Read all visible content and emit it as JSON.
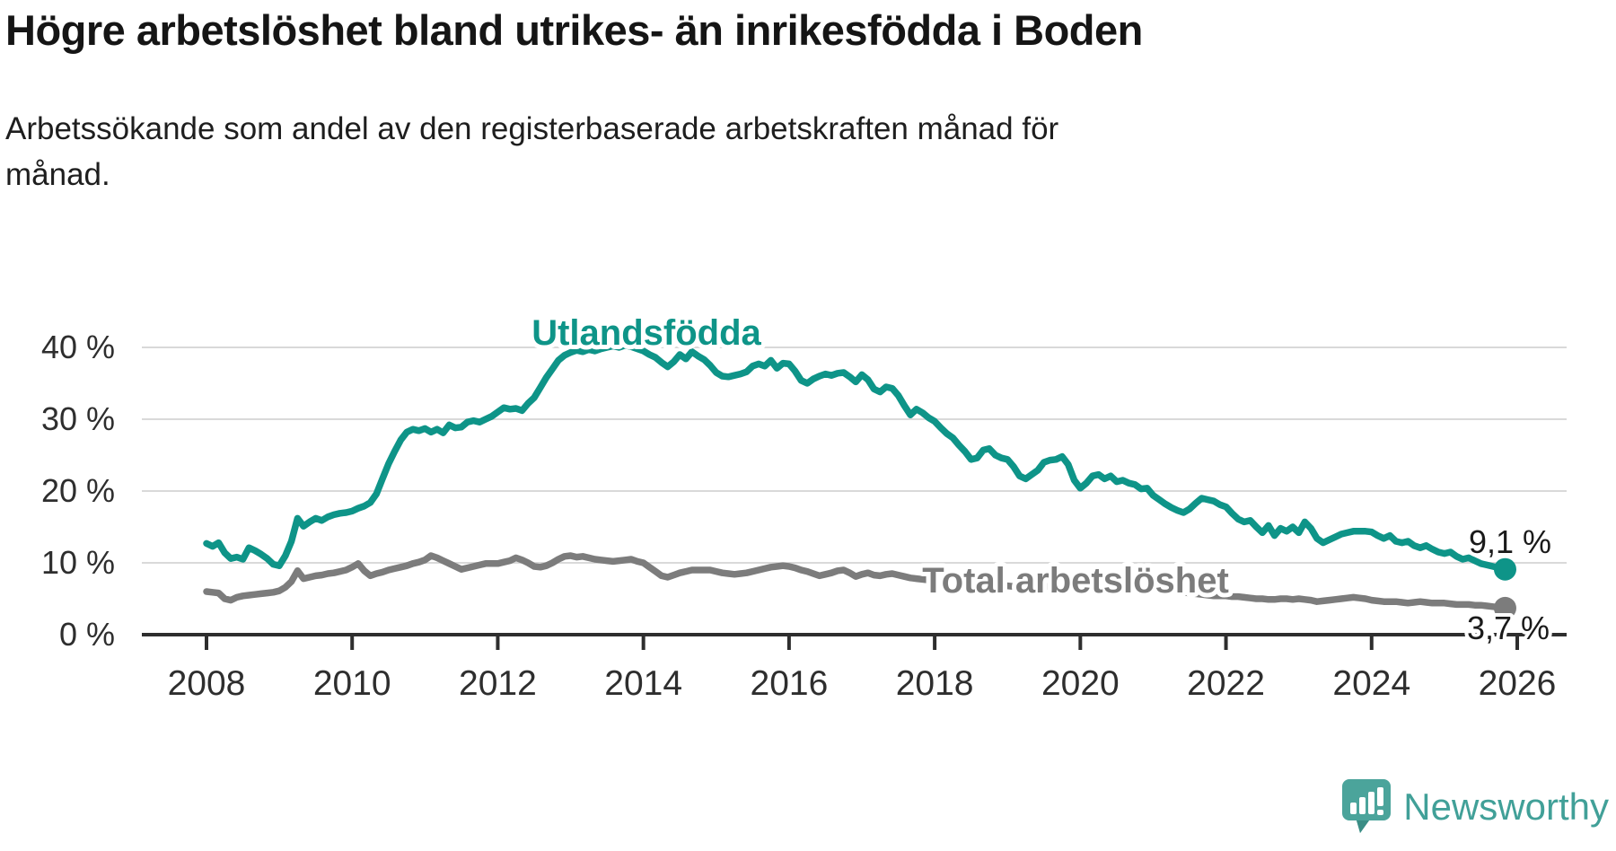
{
  "header": {
    "title": "Högre arbetslöshet bland utrikes- än inrikesfödda i Boden",
    "subtitle": "Arbetssökande som andel av den registerbaserade arbetskraften månad för\nmånad."
  },
  "footer": {
    "brand": "Newsworthy"
  },
  "colors": {
    "accent_teal": "#0e9488",
    "series_gray": "#7c7c7c",
    "logo_teal": "#4ba49b",
    "logo_fold_teal": "#3a8d85",
    "text_dark": "#1a1a1a",
    "grid": "#d9d9d9",
    "axis": "#2e2e2e"
  },
  "chart_data": {
    "type": "line",
    "title": "Högre arbetslöshet bland utrikes- än inrikesfödda i Boden",
    "subtitle": "Arbetssökande som andel av den registerbaserade arbetskraften månad för månad.",
    "x_interval": "monthly",
    "x_start_year": 2008,
    "xlim": [
      2007.1,
      2026.7
    ],
    "ylim": [
      0,
      44
    ],
    "grid": "horizontal",
    "legend_position": "inline-labels",
    "x_tick_labels": [
      "2008",
      "2010",
      "2012",
      "2014",
      "2016",
      "2018",
      "2020",
      "2022",
      "2024",
      "2026"
    ],
    "y_tick_values": [
      0,
      10,
      20,
      30,
      40
    ],
    "y_tick_labels": [
      "0 %",
      "10 %",
      "20 %",
      "30 %",
      "40 %"
    ],
    "series": [
      {
        "name": "Utlandsfödda",
        "color": "#0e9488",
        "end_label": "9,1 %",
        "last_value": 9.1,
        "last_point": "2025-11",
        "values": [
          12.7,
          12.3,
          12.8,
          11.4,
          10.6,
          10.8,
          10.5,
          12.1,
          11.7,
          11.2,
          10.6,
          9.8,
          9.6,
          11.0,
          13.0,
          16.2,
          15.1,
          15.7,
          16.2,
          15.9,
          16.4,
          16.7,
          16.9,
          17.0,
          17.2,
          17.6,
          17.9,
          18.4,
          19.6,
          21.7,
          23.8,
          25.5,
          27.1,
          28.2,
          28.6,
          28.4,
          28.7,
          28.2,
          28.6,
          28.1,
          29.2,
          28.8,
          28.9,
          29.6,
          29.8,
          29.6,
          30.0,
          30.4,
          31.0,
          31.6,
          31.4,
          31.5,
          31.2,
          32.2,
          33.0,
          34.4,
          35.8,
          37.0,
          38.2,
          38.9,
          39.3,
          39.6,
          39.4,
          39.7,
          39.5,
          39.8,
          40.0,
          40.2,
          40.0,
          40.3,
          40.1,
          39.8,
          39.5,
          39.0,
          38.6,
          37.9,
          37.3,
          38.0,
          39.0,
          38.4,
          39.4,
          38.8,
          38.3,
          37.5,
          36.5,
          36.0,
          35.9,
          36.1,
          36.3,
          36.6,
          37.4,
          37.7,
          37.4,
          38.2,
          37.1,
          37.8,
          37.7,
          36.7,
          35.4,
          35.0,
          35.6,
          36.0,
          36.3,
          36.1,
          36.4,
          36.5,
          35.9,
          35.2,
          36.2,
          35.5,
          34.2,
          33.8,
          34.5,
          34.3,
          33.3,
          31.9,
          30.6,
          31.4,
          30.9,
          30.2,
          29.7,
          28.8,
          28.0,
          27.4,
          26.4,
          25.5,
          24.4,
          24.6,
          25.7,
          25.9,
          25.0,
          24.6,
          24.4,
          23.4,
          22.1,
          21.7,
          22.3,
          22.9,
          24.0,
          24.3,
          24.4,
          24.8,
          23.7,
          21.5,
          20.4,
          21.1,
          22.1,
          22.3,
          21.7,
          22.1,
          21.3,
          21.5,
          21.1,
          20.9,
          20.3,
          20.4,
          19.4,
          18.8,
          18.2,
          17.7,
          17.3,
          17.0,
          17.5,
          18.3,
          19.0,
          18.8,
          18.6,
          18.1,
          17.8,
          16.9,
          16.1,
          15.7,
          15.9,
          15.0,
          14.2,
          15.2,
          13.8,
          14.8,
          14.4,
          15.0,
          14.2,
          15.7,
          14.8,
          13.4,
          12.8,
          13.2,
          13.6,
          14.0,
          14.2,
          14.4,
          14.4,
          14.4,
          14.3,
          13.8,
          13.4,
          13.8,
          13.0,
          12.8,
          13.0,
          12.4,
          12.1,
          12.4,
          11.9,
          11.5,
          11.3,
          11.5,
          10.9,
          10.5,
          10.7,
          10.3,
          9.9,
          9.7,
          9.5,
          9.3,
          9.1
        ]
      },
      {
        "name": "Total arbetslöshet",
        "color": "#7c7c7c",
        "end_label": "3,7 %",
        "last_value": 3.7,
        "last_point": "2025-11",
        "values": [
          6.0,
          5.9,
          5.8,
          5.0,
          4.8,
          5.2,
          5.4,
          5.5,
          5.6,
          5.7,
          5.8,
          5.9,
          6.1,
          6.6,
          7.4,
          8.9,
          7.8,
          8.0,
          8.2,
          8.3,
          8.5,
          8.6,
          8.8,
          9.0,
          9.4,
          9.9,
          8.9,
          8.2,
          8.5,
          8.7,
          9.0,
          9.2,
          9.4,
          9.6,
          9.9,
          10.1,
          10.4,
          11.0,
          10.7,
          10.3,
          9.9,
          9.5,
          9.1,
          9.3,
          9.5,
          9.7,
          9.9,
          9.9,
          9.9,
          10.1,
          10.3,
          10.7,
          10.4,
          10.0,
          9.5,
          9.4,
          9.6,
          10.0,
          10.5,
          10.9,
          11.0,
          10.8,
          10.9,
          10.7,
          10.5,
          10.4,
          10.3,
          10.2,
          10.3,
          10.4,
          10.5,
          10.2,
          10.0,
          9.4,
          8.8,
          8.2,
          8.0,
          8.3,
          8.6,
          8.8,
          9.0,
          9.0,
          9.0,
          9.0,
          8.8,
          8.6,
          8.5,
          8.4,
          8.5,
          8.6,
          8.8,
          9.0,
          9.2,
          9.4,
          9.5,
          9.6,
          9.5,
          9.3,
          9.0,
          8.8,
          8.5,
          8.2,
          8.4,
          8.6,
          8.9,
          9.0,
          8.6,
          8.1,
          8.4,
          8.6,
          8.3,
          8.2,
          8.4,
          8.5,
          8.3,
          8.1,
          7.9,
          7.8,
          7.7,
          7.6,
          7.5,
          7.4,
          7.3,
          7.2,
          7.1,
          7.0,
          6.9,
          7.0,
          7.1,
          7.0,
          6.9,
          6.8,
          6.8,
          6.7,
          6.6,
          6.5,
          6.5,
          6.6,
          6.7,
          6.7,
          6.6,
          6.5,
          6.4,
          6.3,
          6.4,
          6.5,
          6.9,
          7.4,
          7.7,
          7.8,
          7.7,
          7.5,
          7.3,
          7.1,
          6.9,
          6.8,
          6.7,
          6.6,
          6.4,
          6.2,
          6.0,
          5.9,
          5.8,
          5.7,
          5.6,
          5.5,
          5.4,
          5.4,
          5.4,
          5.3,
          5.3,
          5.2,
          5.1,
          5.0,
          5.0,
          4.9,
          4.9,
          5.0,
          5.0,
          4.9,
          5.0,
          4.9,
          4.8,
          4.6,
          4.7,
          4.8,
          4.9,
          5.0,
          5.1,
          5.2,
          5.1,
          5.0,
          4.8,
          4.7,
          4.6,
          4.6,
          4.6,
          4.5,
          4.4,
          4.5,
          4.6,
          4.5,
          4.4,
          4.4,
          4.4,
          4.3,
          4.2,
          4.2,
          4.2,
          4.1,
          4.1,
          4.0,
          3.9,
          3.8,
          3.7
        ]
      }
    ]
  }
}
